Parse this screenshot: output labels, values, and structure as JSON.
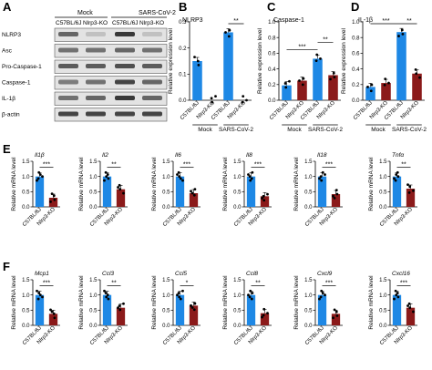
{
  "panels": {
    "A": {
      "letter": "A",
      "groups": [
        "Mock",
        "SARS-CoV-2"
      ],
      "lanes": [
        "C57BL/6J",
        "Nlrp3-KO",
        "C57BL/6J",
        "Nlrp3-KO"
      ],
      "rows": [
        "NLRP3",
        "Asc",
        "Pro-Caspase-1",
        "Caspase-1",
        "IL-1β",
        "β-actin"
      ]
    },
    "B": {
      "letter": "B",
      "subtitle": "NLRP3",
      "ylabel": "Relative expression level"
    },
    "C": {
      "letter": "C",
      "subtitle": "Caspase-1",
      "ylabel": "Relative expression level"
    },
    "D": {
      "letter": "D",
      "subtitle": "IL-1β",
      "ylabel": "Relative expression level"
    },
    "E": {
      "letter": "E"
    },
    "F": {
      "letter": "F"
    }
  },
  "colors": {
    "wt": "#1e88e5",
    "ko": "#8b1a1a"
  },
  "chart_data": [
    {
      "id": "B",
      "type": "bar",
      "categories": [
        "C57BL/6J",
        "Nlrp3-KO",
        "C57BL/6J",
        "Nlrp3-KO"
      ],
      "groups": [
        "Mock",
        "SARS-CoV-2"
      ],
      "values": [
        0.15,
        0,
        0.26,
        0
      ],
      "ylim": [
        0,
        0.3
      ],
      "yticks": [
        "0.0",
        "0.1",
        "0.2",
        "0.3"
      ],
      "ylabel": "Relative expression level",
      "title": "NLRP3",
      "sig": [
        {
          "from": 2,
          "to": 3,
          "label": "**"
        }
      ]
    },
    {
      "id": "C",
      "type": "bar",
      "categories": [
        "C57BL/6J",
        "Nlrp3-KO",
        "C57BL/6J",
        "Nlrp3-KO"
      ],
      "groups": [
        "Mock",
        "SARS-CoV-2"
      ],
      "values": [
        0.19,
        0.25,
        0.53,
        0.32
      ],
      "ylim": [
        0,
        1.0
      ],
      "yticks": [
        "0.0",
        "0.2",
        "0.4",
        "0.6",
        "0.8",
        "1.0"
      ],
      "ylabel": "Relative expression level",
      "title": "Caspase-1",
      "sig": [
        {
          "from": 0,
          "to": 2,
          "label": "***"
        },
        {
          "from": 2,
          "to": 3,
          "label": "**"
        }
      ]
    },
    {
      "id": "D",
      "type": "bar",
      "categories": [
        "C57BL/6J",
        "Nlrp3-KO",
        "C57BL/6J",
        "Nlrp3-KO"
      ],
      "groups": [
        "Mock",
        "SARS-CoV-2"
      ],
      "values": [
        0.17,
        0.22,
        0.87,
        0.34
      ],
      "ylim": [
        0,
        1.0
      ],
      "yticks": [
        "0.0",
        "0.2",
        "0.4",
        "0.6",
        "0.8",
        "1.0"
      ],
      "ylabel": "Relative expression level",
      "title": "IL-1β",
      "sig": [
        {
          "from": 0,
          "to": 2,
          "label": "***"
        },
        {
          "from": 2,
          "to": 3,
          "label": "**"
        }
      ]
    },
    {
      "id": "E1",
      "type": "bar",
      "categories": [
        "C57BL/6J",
        "Nlrp3-KO"
      ],
      "values": [
        1.0,
        0.3
      ],
      "ylim": [
        0,
        1.5
      ],
      "yticks": [
        "0.0",
        "0.5",
        "1.0",
        "1.5"
      ],
      "ylabel": "Relative mRNA level",
      "title": "Il1β",
      "sig": [
        {
          "from": 0,
          "to": 1,
          "label": "***"
        }
      ]
    },
    {
      "id": "E2",
      "type": "bar",
      "categories": [
        "C57BL/6J",
        "Nlrp3-KO"
      ],
      "values": [
        1.0,
        0.58
      ],
      "ylim": [
        0,
        1.5
      ],
      "yticks": [
        "0.0",
        "0.5",
        "1.0",
        "1.5"
      ],
      "ylabel": "Relative mRNA level",
      "title": "Il2",
      "sig": [
        {
          "from": 0,
          "to": 1,
          "label": "**"
        }
      ]
    },
    {
      "id": "E3",
      "type": "bar",
      "categories": [
        "C57BL/6J",
        "Nlrp3-KO"
      ],
      "values": [
        1.0,
        0.45
      ],
      "ylim": [
        0,
        1.5
      ],
      "yticks": [
        "0.0",
        "0.5",
        "1.0",
        "1.5"
      ],
      "ylabel": "Relative mRNA level",
      "title": "Il6",
      "sig": [
        {
          "from": 0,
          "to": 1,
          "label": "***"
        }
      ]
    },
    {
      "id": "E4",
      "type": "bar",
      "categories": [
        "C57BL/6J",
        "Nlrp3-KO"
      ],
      "values": [
        1.0,
        0.35
      ],
      "ylim": [
        0,
        1.5
      ],
      "yticks": [
        "0.0",
        "0.5",
        "1.0",
        "1.5"
      ],
      "ylabel": "Relative mRNA level",
      "title": "Il8",
      "sig": [
        {
          "from": 0,
          "to": 1,
          "label": "***"
        }
      ]
    },
    {
      "id": "E5",
      "type": "bar",
      "categories": [
        "C57BL/6J",
        "Nlrp3-KO"
      ],
      "values": [
        1.0,
        0.42
      ],
      "ylim": [
        0,
        1.5
      ],
      "yticks": [
        "0.0",
        "0.5",
        "1.0",
        "1.5"
      ],
      "ylabel": "Relative mRNA level",
      "title": "Il18",
      "sig": [
        {
          "from": 0,
          "to": 1,
          "label": "***"
        }
      ]
    },
    {
      "id": "E6",
      "type": "bar",
      "categories": [
        "C57BL/6J",
        "Nlrp3-KO"
      ],
      "values": [
        1.0,
        0.6
      ],
      "ylim": [
        0,
        1.5
      ],
      "yticks": [
        "0.0",
        "0.5",
        "1.0",
        "1.5"
      ],
      "ylabel": "Relative mRNA level",
      "title": "Tnfα",
      "sig": [
        {
          "from": 0,
          "to": 1,
          "label": "**"
        }
      ]
    },
    {
      "id": "F1",
      "type": "bar",
      "categories": [
        "C57BL/6J",
        "Nlrp3-KO"
      ],
      "values": [
        1.0,
        0.38
      ],
      "ylim": [
        0,
        1.5
      ],
      "yticks": [
        "0.0",
        "0.5",
        "1.0",
        "1.5"
      ],
      "ylabel": "Relative mRNA level",
      "title": "Mcp1",
      "sig": [
        {
          "from": 0,
          "to": 1,
          "label": "***"
        }
      ]
    },
    {
      "id": "F2",
      "type": "bar",
      "categories": [
        "C57BL/6J",
        "Nlrp3-KO"
      ],
      "values": [
        1.0,
        0.58
      ],
      "ylim": [
        0,
        1.5
      ],
      "yticks": [
        "0.0",
        "0.5",
        "1.0",
        "1.5"
      ],
      "ylabel": "Relative mRNA level",
      "title": "Ccl3",
      "sig": [
        {
          "from": 0,
          "to": 1,
          "label": "**"
        }
      ]
    },
    {
      "id": "F3",
      "type": "bar",
      "categories": [
        "C57BL/6J",
        "Nlrp3-KO"
      ],
      "values": [
        1.0,
        0.65
      ],
      "ylim": [
        0,
        1.5
      ],
      "yticks": [
        "0.0",
        "0.5",
        "1.0",
        "1.5"
      ],
      "ylabel": "Relative mRNA level",
      "title": "Ccl5",
      "sig": [
        {
          "from": 0,
          "to": 1,
          "label": "*"
        }
      ]
    },
    {
      "id": "F4",
      "type": "bar",
      "categories": [
        "C57BL/6J",
        "Nlrp3-KO"
      ],
      "values": [
        1.0,
        0.4
      ],
      "ylim": [
        0,
        1.5
      ],
      "yticks": [
        "0.0",
        "0.5",
        "1.0",
        "1.5"
      ],
      "ylabel": "Relative mRNA level",
      "title": "Ccl8",
      "sig": [
        {
          "from": 0,
          "to": 1,
          "label": "**"
        }
      ]
    },
    {
      "id": "F5",
      "type": "bar",
      "categories": [
        "C57BL/6J",
        "Nlrp3-KO"
      ],
      "values": [
        1.0,
        0.38
      ],
      "ylim": [
        0,
        1.5
      ],
      "yticks": [
        "0.0",
        "0.5",
        "1.0",
        "1.5"
      ],
      "ylabel": "Relative mRNA level",
      "title": "Cxcl9",
      "sig": [
        {
          "from": 0,
          "to": 1,
          "label": "***"
        }
      ]
    },
    {
      "id": "F6",
      "type": "bar",
      "categories": [
        "C57BL/6J",
        "Nlrp3-KO"
      ],
      "values": [
        1.0,
        0.58
      ],
      "ylim": [
        0,
        1.5
      ],
      "yticks": [
        "0.0",
        "0.5",
        "1.0",
        "1.5"
      ],
      "ylabel": "Relative mRNA level",
      "title": "Cxcl16",
      "sig": [
        {
          "from": 0,
          "to": 1,
          "label": "***"
        }
      ]
    }
  ]
}
